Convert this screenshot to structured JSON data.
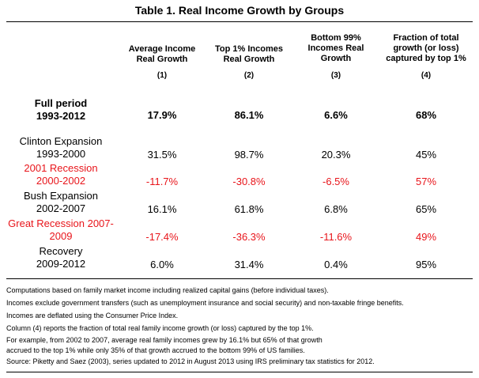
{
  "title": "Table 1. Real Income Growth by Groups",
  "columns": [
    {
      "lines": [
        "Average Income",
        "Real Growth"
      ],
      "number": "(1)"
    },
    {
      "lines": [
        "Top 1% Incomes",
        "Real Growth"
      ],
      "number": "(2)"
    },
    {
      "lines": [
        "Bottom 99%",
        "Incomes Real",
        "Growth"
      ],
      "number": "(3)"
    },
    {
      "lines": [
        "Fraction of total",
        "growth (or loss)",
        "captured by top 1%"
      ],
      "number": "(4)"
    }
  ],
  "rows": [
    {
      "label1": "Full period",
      "label2": "1993-2012",
      "values": [
        "17.9%",
        "86.1%",
        "6.6%",
        "68%"
      ]
    },
    {
      "label1": "Clinton Expansion",
      "label2": "1993-2000",
      "values": [
        "31.5%",
        "98.7%",
        "20.3%",
        "45%"
      ]
    },
    {
      "label1": "2001 Recession",
      "label2": "2000-2002",
      "values": [
        "-11.7%",
        "-30.8%",
        "-6.5%",
        "57%"
      ]
    },
    {
      "label1": "Bush Expansion",
      "label2": "2002-2007",
      "values": [
        "16.1%",
        "61.8%",
        "6.8%",
        "65%"
      ]
    },
    {
      "label1": "Great Recession 2007-",
      "label2": "2009",
      "values": [
        "-17.4%",
        "-36.3%",
        "-11.6%",
        "49%"
      ]
    },
    {
      "label1": "Recovery",
      "label2": "2009-2012",
      "values": [
        "6.0%",
        "31.4%",
        "0.4%",
        "95%"
      ]
    }
  ],
  "colors": {
    "text": "#000000",
    "recession": "#e8151b"
  },
  "notes": [
    "Computations based on family market income including realized capital gains (before individual taxes).",
    "Incomes exclude government transfers (such as unemployment insurance and social security) and non-taxable fringe benefits.",
    "Incomes are deflated using the Consumer Price Index.",
    "Column (4) reports the fraction of total real family income growth (or loss) captured by the top 1%.",
    "For example, from 2002 to 2007, average real family incomes grew by 16.1% but 65% of that growth",
    "accrued to the top 1% while only 35% of that growth accrued to the bottom 99% of US families.",
    "Source: Piketty and Saez (2003), series updated to 2012 in August 2013 using IRS preliminary tax statistics for 2012."
  ]
}
